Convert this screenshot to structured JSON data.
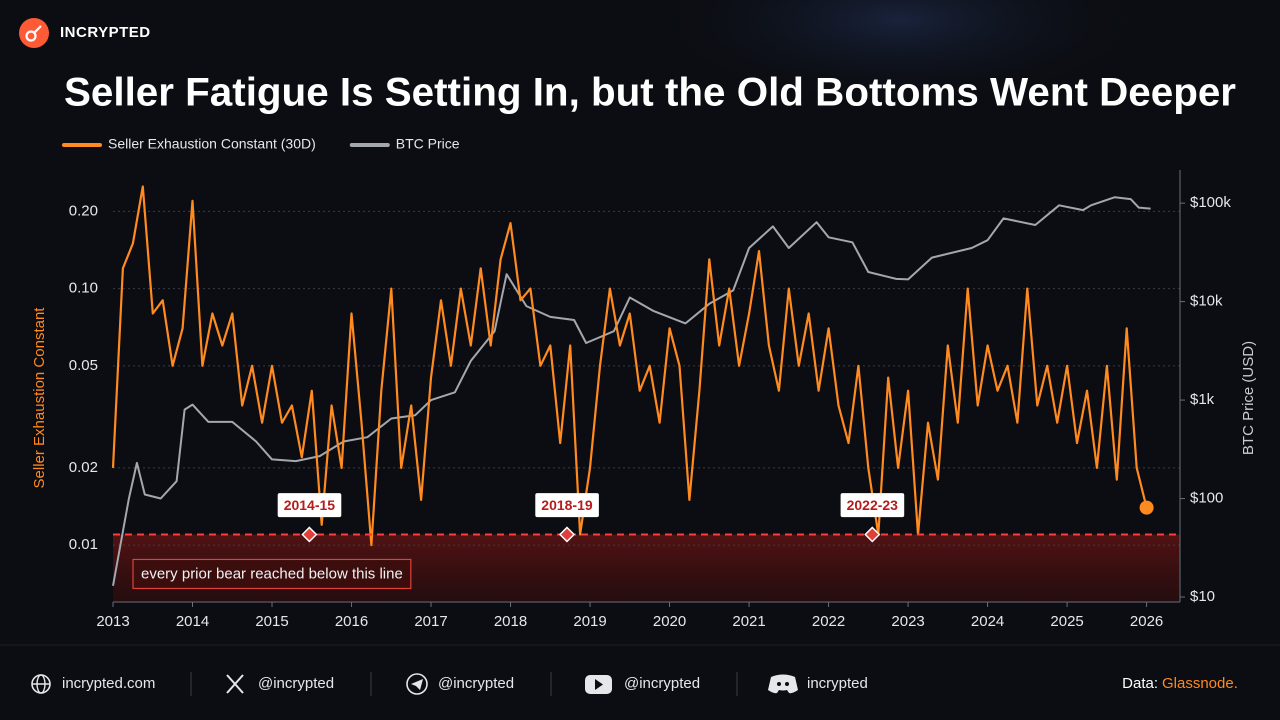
{
  "brand": "INCRYPTED",
  "chart_data": {
    "type": "line",
    "title": "Seller Fatigue Is Setting In, but the Old Bottoms Went Deeper",
    "y_label": "Seller Exhaustion Constant",
    "y2_label": "BTC Price (USD)",
    "log_y": true,
    "log_y2": true,
    "grid": true,
    "xlim": [
      2013,
      2026.42
    ],
    "xticks": [
      2013,
      2014,
      2015,
      2016,
      2017,
      2018,
      2019,
      2020,
      2021,
      2022,
      2023,
      2024,
      2025,
      2026
    ],
    "ylim": [
      0.006,
      0.29
    ],
    "yticks": [
      {
        "value": 0.2,
        "label": "0.20"
      },
      {
        "value": 0.1,
        "label": "0.10"
      },
      0.05,
      0.02,
      0.01
    ],
    "y2lim": [
      8.9,
      217000
    ],
    "y2ticks": [
      {
        "value": 100000,
        "label": "$100k"
      },
      {
        "value": 10000,
        "label": "$10k"
      },
      {
        "value": 1000,
        "label": "$1k"
      },
      {
        "value": 100,
        "label": "$100"
      },
      {
        "value": 10,
        "label": "$10"
      }
    ],
    "series": [
      {
        "name": "Seller Exhaustion Constant (30D)",
        "color": "#ff8a1f",
        "x": [
          2013,
          2013.125,
          2013.25,
          2013.375,
          2013.5,
          2013.625,
          2013.75,
          2013.875,
          2014,
          2014.125,
          2014.25,
          2014.375,
          2014.5,
          2014.625,
          2014.75,
          2014.875,
          2015,
          2015.125,
          2015.25,
          2015.375,
          2015.5,
          2015.625,
          2015.75,
          2015.875,
          2016,
          2016.125,
          2016.25,
          2016.375,
          2016.5,
          2016.625,
          2016.75,
          2016.875,
          2017,
          2017.125,
          2017.25,
          2017.375,
          2017.5,
          2017.625,
          2017.75,
          2017.875,
          2018,
          2018.125,
          2018.25,
          2018.375,
          2018.5,
          2018.625,
          2018.75,
          2018.875,
          2019,
          2019.125,
          2019.25,
          2019.375,
          2019.5,
          2019.625,
          2019.75,
          2019.875,
          2020,
          2020.125,
          2020.25,
          2020.375,
          2020.5,
          2020.625,
          2020.75,
          2020.875,
          2021,
          2021.125,
          2021.25,
          2021.375,
          2021.5,
          2021.625,
          2021.75,
          2021.875,
          2022,
          2022.125,
          2022.25,
          2022.375,
          2022.5,
          2022.625,
          2022.75,
          2022.875,
          2023,
          2023.125,
          2023.25,
          2023.375,
          2023.5,
          2023.625,
          2023.75,
          2023.875,
          2024,
          2024.125,
          2024.25,
          2024.375,
          2024.5,
          2024.625,
          2024.75,
          2024.875,
          2025,
          2025.125,
          2025.25,
          2025.375,
          2025.5,
          2025.625,
          2025.75,
          2025.875,
          2026
        ],
        "values": [
          0.02,
          0.12,
          0.15,
          0.25,
          0.08,
          0.09,
          0.05,
          0.07,
          0.22,
          0.05,
          0.08,
          0.06,
          0.08,
          0.035,
          0.05,
          0.03,
          0.05,
          0.03,
          0.035,
          0.022,
          0.04,
          0.012,
          0.035,
          0.02,
          0.08,
          0.03,
          0.01,
          0.04,
          0.1,
          0.02,
          0.035,
          0.015,
          0.045,
          0.09,
          0.05,
          0.1,
          0.06,
          0.12,
          0.06,
          0.13,
          0.18,
          0.09,
          0.1,
          0.05,
          0.06,
          0.025,
          0.06,
          0.011,
          0.02,
          0.05,
          0.1,
          0.06,
          0.08,
          0.04,
          0.05,
          0.03,
          0.07,
          0.05,
          0.015,
          0.04,
          0.13,
          0.06,
          0.1,
          0.05,
          0.08,
          0.14,
          0.06,
          0.04,
          0.1,
          0.05,
          0.08,
          0.04,
          0.07,
          0.035,
          0.025,
          0.05,
          0.02,
          0.011,
          0.045,
          0.02,
          0.04,
          0.011,
          0.03,
          0.018,
          0.06,
          0.03,
          0.1,
          0.035,
          0.06,
          0.04,
          0.05,
          0.03,
          0.1,
          0.035,
          0.05,
          0.03,
          0.05,
          0.025,
          0.04,
          0.02,
          0.05,
          0.018,
          0.07,
          0.02,
          0.014
        ]
      },
      {
        "name": "BTC Price",
        "color": "#a3a7ae",
        "axis": "y2",
        "x": [
          2013,
          2013.2,
          2013.3,
          2013.4,
          2013.6,
          2013.8,
          2013.9,
          2014,
          2014.2,
          2014.5,
          2014.8,
          2015,
          2015.3,
          2015.6,
          2015.9,
          2016.2,
          2016.5,
          2016.8,
          2017,
          2017.3,
          2017.5,
          2017.8,
          2017.95,
          2018.2,
          2018.5,
          2018.8,
          2018.95,
          2019.3,
          2019.5,
          2019.8,
          2020.2,
          2020.5,
          2020.8,
          2021,
          2021.3,
          2021.5,
          2021.85,
          2022,
          2022.3,
          2022.5,
          2022.85,
          2023,
          2023.3,
          2023.8,
          2024,
          2024.2,
          2024.6,
          2024.9,
          2025.2,
          2025.3,
          2025.6,
          2025.8,
          2025.9,
          2026.05
        ],
        "values": [
          13,
          100,
          230,
          110,
          100,
          150,
          800,
          900,
          600,
          600,
          380,
          250,
          240,
          270,
          380,
          420,
          650,
          700,
          1000,
          1200,
          2500,
          5000,
          19000,
          9000,
          7000,
          6500,
          3800,
          5000,
          11000,
          8000,
          6000,
          9500,
          13000,
          35000,
          58000,
          35000,
          64000,
          45000,
          40000,
          20000,
          17000,
          16800,
          28000,
          35000,
          42000,
          70000,
          60000,
          95000,
          85000,
          95000,
          115000,
          110000,
          90000,
          88000
        ]
      }
    ],
    "threshold": 0.011,
    "annotation": "every prior bear reached below this line",
    "bear_markers": [
      {
        "x": 2015.47,
        "label": "2014-15"
      },
      {
        "x": 2018.71,
        "label": "2018-19"
      },
      {
        "x": 2022.55,
        "label": "2022-23"
      }
    ]
  },
  "footer": {
    "site": "incrypted.com",
    "x": "@incrypted",
    "telegram": "@incrypted",
    "youtube": "@incrypted",
    "discord": "incrypted",
    "source_prefix": "Data:",
    "source": "Glassnode."
  }
}
